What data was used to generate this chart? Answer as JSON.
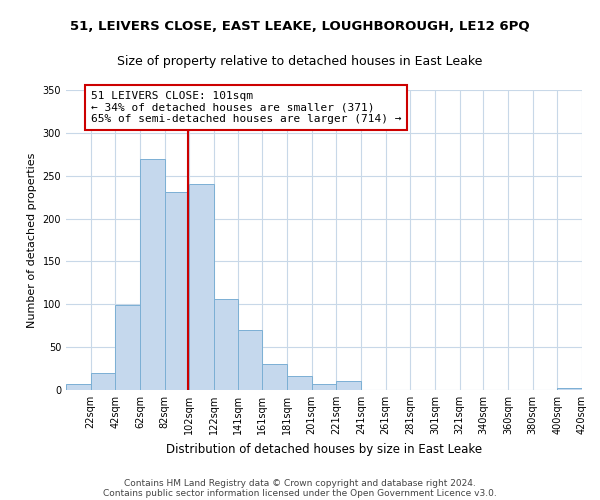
{
  "title": "51, LEIVERS CLOSE, EAST LEAKE, LOUGHBOROUGH, LE12 6PQ",
  "subtitle": "Size of property relative to detached houses in East Leake",
  "xlabel": "Distribution of detached houses by size in East Leake",
  "ylabel": "Number of detached properties",
  "bar_color": "#c5d8ed",
  "bar_edge_color": "#7bafd4",
  "background_color": "#ffffff",
  "grid_color": "#c8d8e8",
  "annotation_box_edge": "#cc0000",
  "annotation_line_color": "#cc0000",
  "annotation_text": "51 LEIVERS CLOSE: 101sqm\n← 34% of detached houses are smaller (371)\n65% of semi-detached houses are larger (714) →",
  "property_line_x": 101,
  "ylim": [
    0,
    350
  ],
  "yticks": [
    0,
    50,
    100,
    150,
    200,
    250,
    300,
    350
  ],
  "bin_edges": [
    2,
    22,
    42,
    62,
    82,
    102,
    122,
    141,
    161,
    181,
    201,
    221,
    241,
    261,
    281,
    301,
    321,
    340,
    360,
    380,
    400,
    420
  ],
  "bin_counts": [
    7,
    20,
    99,
    270,
    231,
    240,
    106,
    70,
    30,
    16,
    7,
    11,
    0,
    0,
    0,
    0,
    0,
    0,
    0,
    0,
    2
  ],
  "tick_labels": [
    "22sqm",
    "42sqm",
    "62sqm",
    "82sqm",
    "102sqm",
    "122sqm",
    "141sqm",
    "161sqm",
    "181sqm",
    "201sqm",
    "221sqm",
    "241sqm",
    "261sqm",
    "281sqm",
    "301sqm",
    "321sqm",
    "340sqm",
    "360sqm",
    "380sqm",
    "400sqm",
    "420sqm"
  ],
  "footer_line1": "Contains HM Land Registry data © Crown copyright and database right 2024.",
  "footer_line2": "Contains public sector information licensed under the Open Government Licence v3.0.",
  "title_fontsize": 9.5,
  "subtitle_fontsize": 9,
  "xlabel_fontsize": 8.5,
  "ylabel_fontsize": 8,
  "tick_fontsize": 7,
  "annotation_fontsize": 8,
  "footer_fontsize": 6.5
}
